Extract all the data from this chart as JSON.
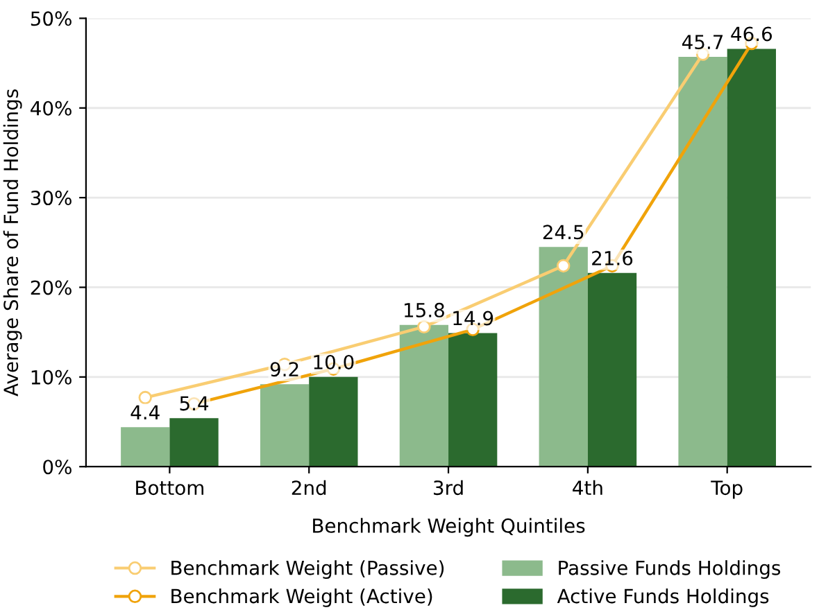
{
  "chart_data": {
    "type": "bar",
    "xlabel": "Benchmark Weight Quintiles",
    "ylabel": "Average Share of Fund Holdings",
    "categories": [
      "Bottom",
      "2nd",
      "3rd",
      "4th",
      "Top"
    ],
    "series": [
      {
        "name": "Benchmark Weight (Passive)",
        "type": "line",
        "color": "#f9cd72",
        "values": [
          7.7,
          11.4,
          15.6,
          22.4,
          46.0
        ]
      },
      {
        "name": "Benchmark Weight (Active)",
        "type": "line",
        "color": "#f0a30a",
        "values": [
          7.0,
          10.9,
          15.3,
          22.4,
          47.2
        ]
      },
      {
        "name": "Passive Funds Holdings",
        "color": "#8cba8c",
        "values": [
          4.4,
          9.2,
          15.8,
          24.5,
          45.7
        ],
        "value_labels": [
          "4.4",
          "9.2",
          "15.8",
          "24.5",
          "45.7"
        ]
      },
      {
        "name": "Active Funds Holdings",
        "color": "#2b6a2e",
        "values": [
          5.4,
          10.0,
          14.9,
          21.6,
          46.6
        ],
        "value_labels": [
          "5.4",
          "10.0",
          "14.9",
          "21.6",
          "46.6"
        ]
      }
    ],
    "marker": "circle",
    "ylim": [
      0,
      50
    ],
    "yticks": [
      {
        "value": 0,
        "label": "0%"
      },
      {
        "value": 10,
        "label": "10%"
      },
      {
        "value": 20,
        "label": "20%"
      },
      {
        "value": 30,
        "label": "30%"
      },
      {
        "value": 40,
        "label": "40%"
      },
      {
        "value": 50,
        "label": "50%"
      }
    ],
    "grid": "y",
    "legend": "bottom"
  }
}
